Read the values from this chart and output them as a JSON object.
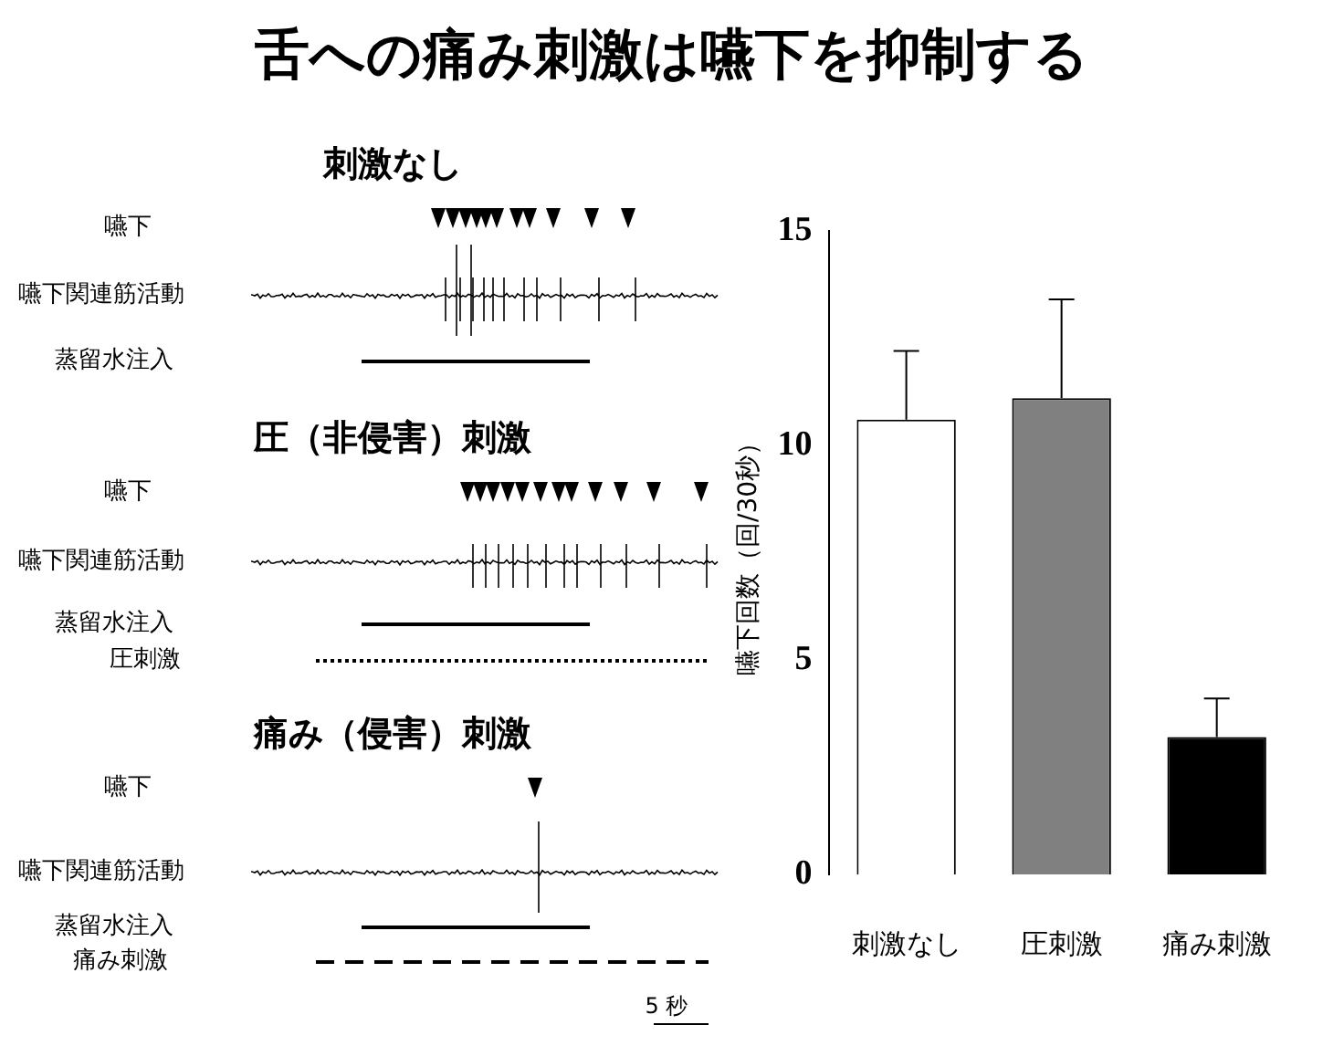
{
  "chart_data": {
    "type": "bar",
    "title": "舌への痛み刺激は嚥下を抑制する",
    "ylabel": "嚥下回数（回/30秒）",
    "categories": [
      "刺激なし",
      "圧刺激",
      "痛み刺激"
    ],
    "values": [
      10.6,
      11.1,
      3.2
    ],
    "colors": [
      "#ffffff",
      "#808080",
      "#000000"
    ],
    "errors": [
      [
        10.6,
        12.2
      ],
      [
        11.1,
        13.4
      ],
      [
        3.2,
        4.1
      ]
    ],
    "ylim": [
      0,
      15
    ],
    "yticks": [
      0,
      5,
      10,
      15
    ],
    "grid": false,
    "legend": false,
    "annotations": [
      "刺激なし",
      "嚥下",
      "嚥下関連筋活動",
      "蒸留水注入",
      "圧（非侵害）刺激",
      "嚥下",
      "嚥下関連筋活動",
      "蒸留水注入",
      "圧刺激",
      "痛み（侵害）刺激",
      "嚥下",
      "嚥下関連筋活動",
      "蒸留水注入",
      "痛み刺激",
      "5 秒"
    ]
  }
}
